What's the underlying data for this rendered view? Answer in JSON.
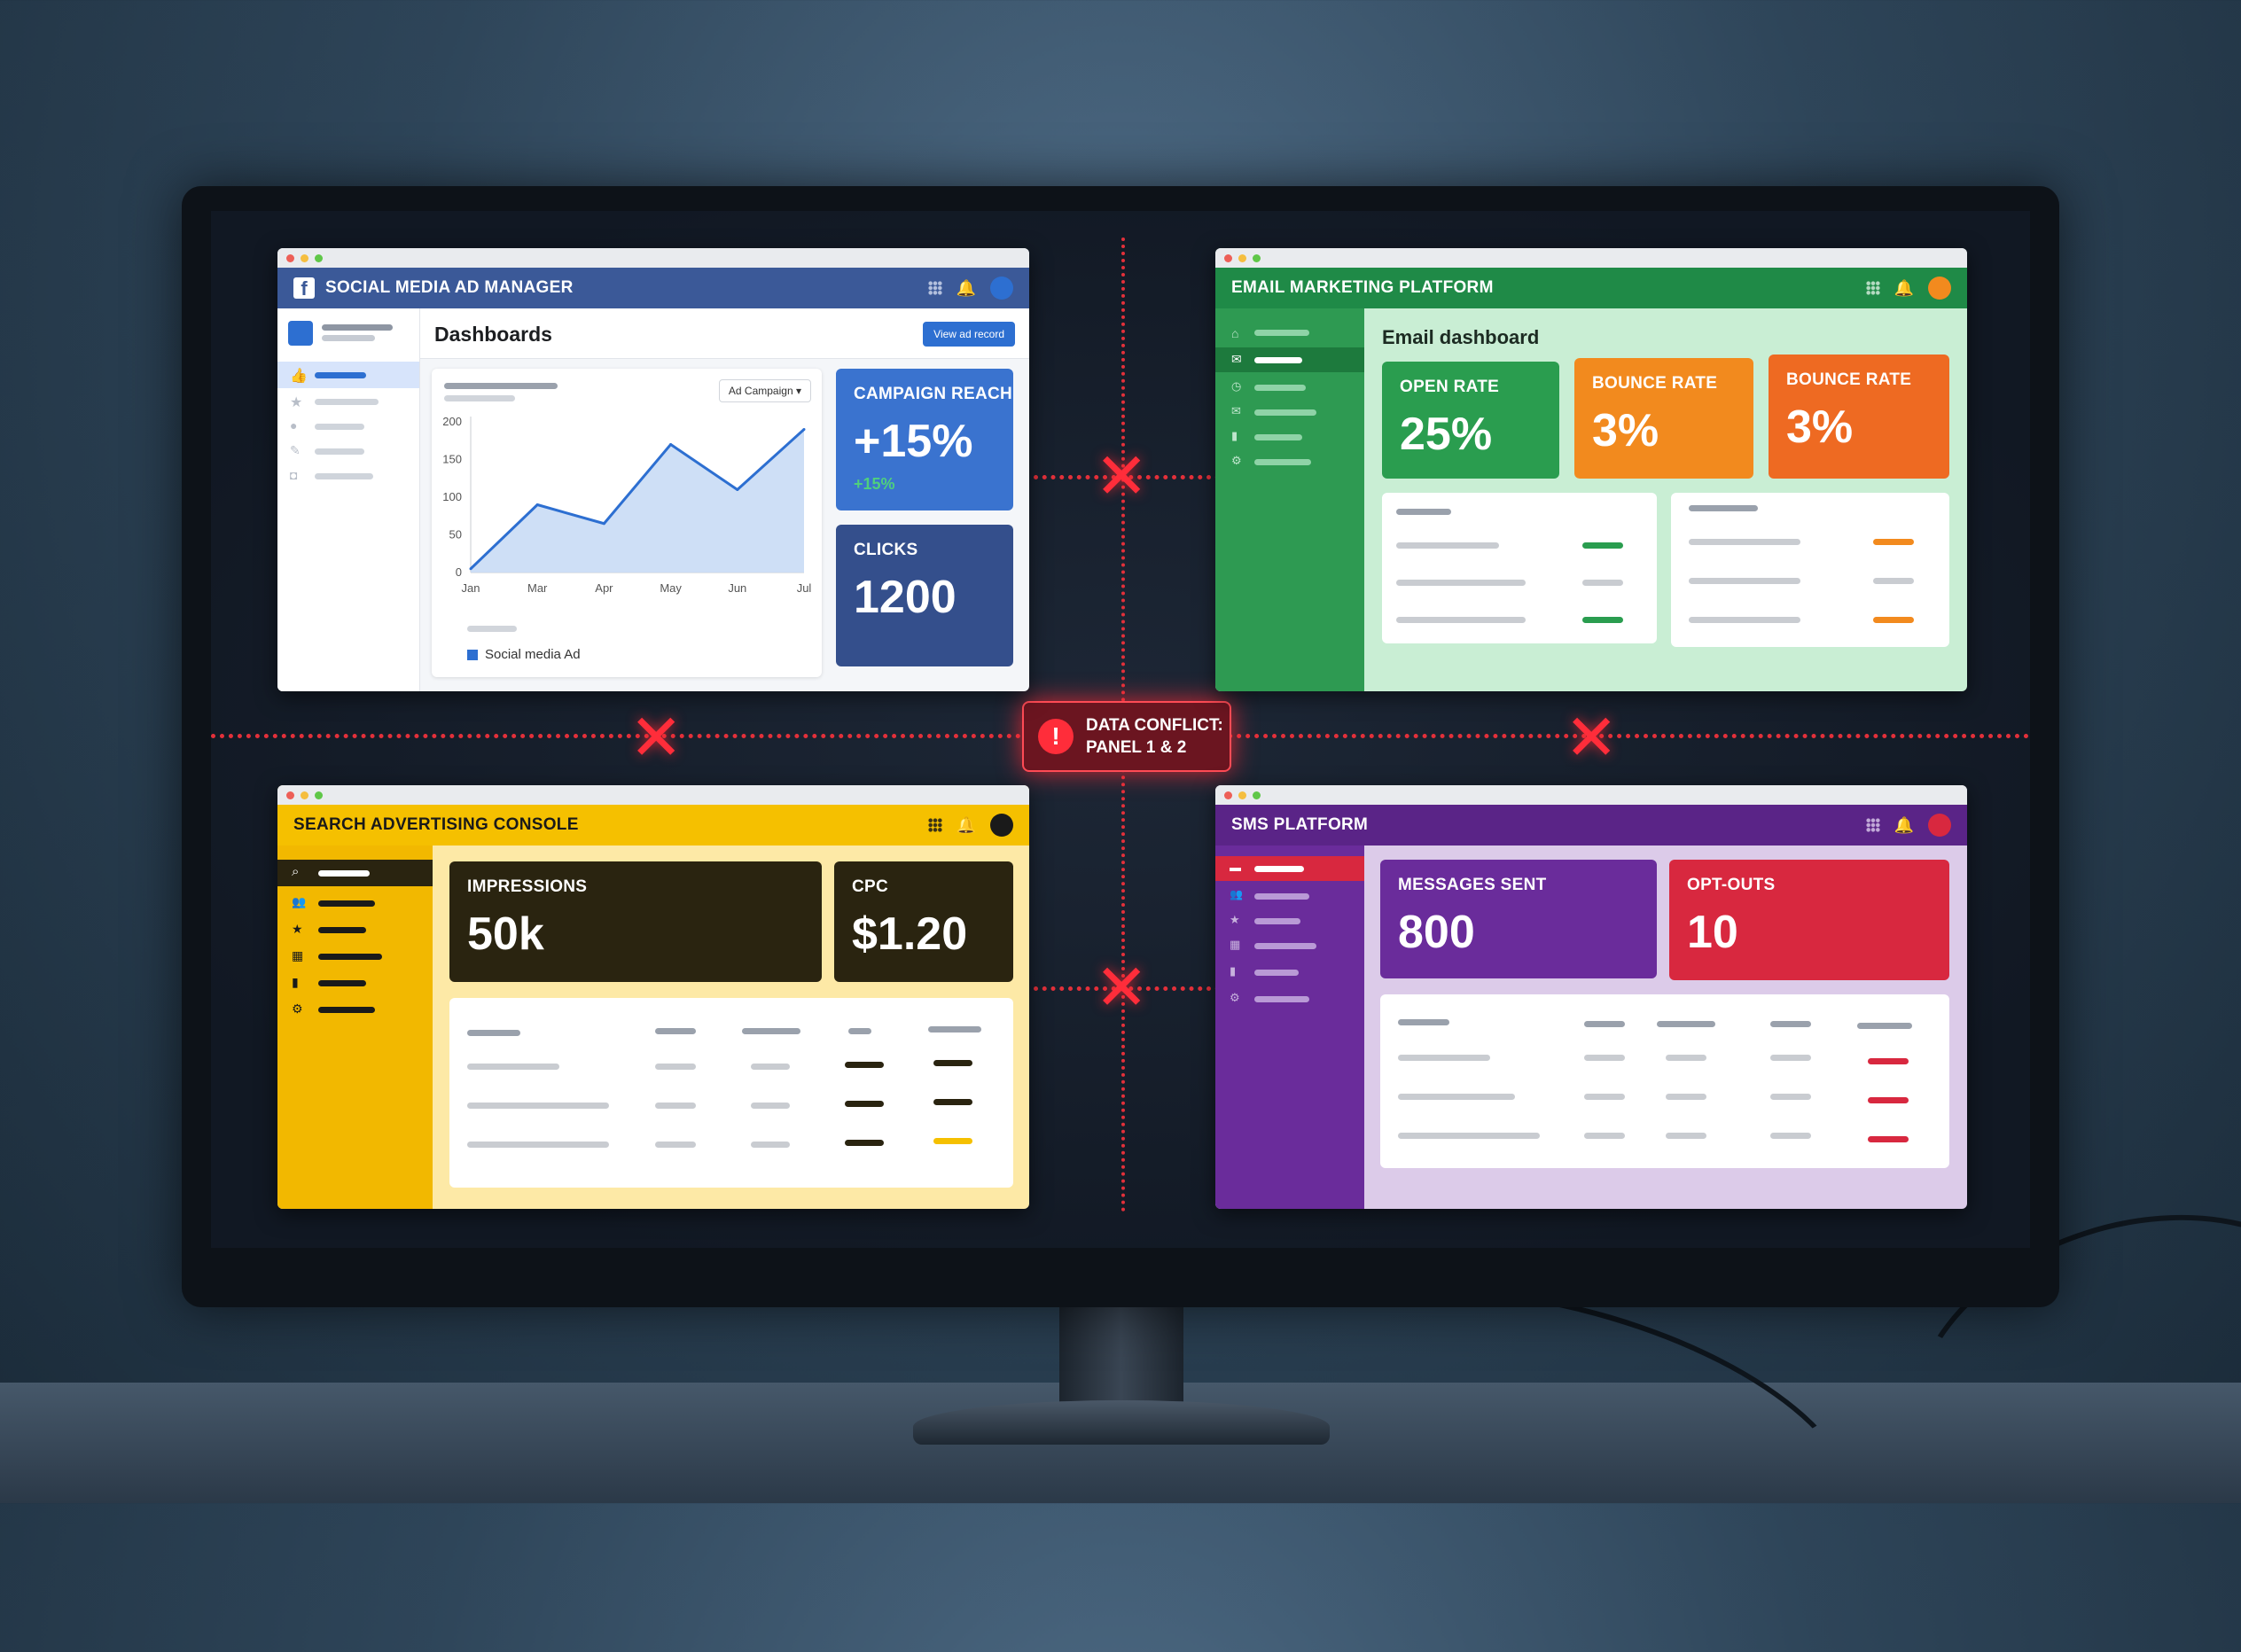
{
  "panel1": {
    "app_title": "SOCIAL MEDIA AD MANAGER",
    "page_title": "Dashboards",
    "action_button": "View ad record",
    "dropdown_label": "Ad Campaign",
    "legend": "Social media Ad",
    "reach_label": "CAMPAIGN REACH",
    "reach_value": "+15%",
    "reach_sub": "+15%",
    "clicks_label": "CLICKS",
    "clicks_value": "1200",
    "colors": {
      "bar": "#3b5998",
      "accent": "#2d6fd1"
    }
  },
  "chart_data": {
    "type": "area",
    "categories": [
      "Jan",
      "Mar",
      "Apr",
      "May",
      "Jun",
      "Jul"
    ],
    "yticks": [
      "200",
      "150",
      "100",
      "50",
      "0"
    ],
    "ylim": [
      0,
      200
    ],
    "series": [
      {
        "name": "Social media Ad",
        "values": [
          5,
          90,
          65,
          170,
          110,
          190
        ]
      }
    ],
    "legend_position": "bottom-left",
    "grid": false
  },
  "panel2": {
    "app_title": "EMAIL MARKETING PLATFORM",
    "page_title": "Email dashboard",
    "open_rate_label": "OPEN RATE",
    "open_rate_value": "25%",
    "bounce1_label": "BOUNCE RATE",
    "bounce1_value": "3%",
    "bounce2_label": "BOUNCE RATE",
    "bounce2_value": "3%",
    "colors": {
      "bar": "#1f8a47",
      "card1": "#2a9d4f",
      "card2": "#f28a1e",
      "card3": "#ee6a22"
    }
  },
  "panel3": {
    "app_title": "SEARCH ADVERTISING CONSOLE",
    "impressions_label": "IMPRESSIONS",
    "impressions_value": "50k",
    "cpc_label": "CPC",
    "cpc_value": "$1.20",
    "colors": {
      "bar": "#f5c000"
    }
  },
  "panel4": {
    "app_title": "SMS PLATFORM",
    "sent_label": "MESSAGES SENT",
    "sent_value": "800",
    "optouts_label": "OPT-OUTS",
    "optouts_value": "10",
    "colors": {
      "bar": "#5a2487",
      "card1": "#6a2c9b",
      "card2": "#d8283f"
    }
  },
  "conflict": {
    "line1": "DATA CONFLICT:",
    "line2": "PANEL 1 & 2"
  }
}
